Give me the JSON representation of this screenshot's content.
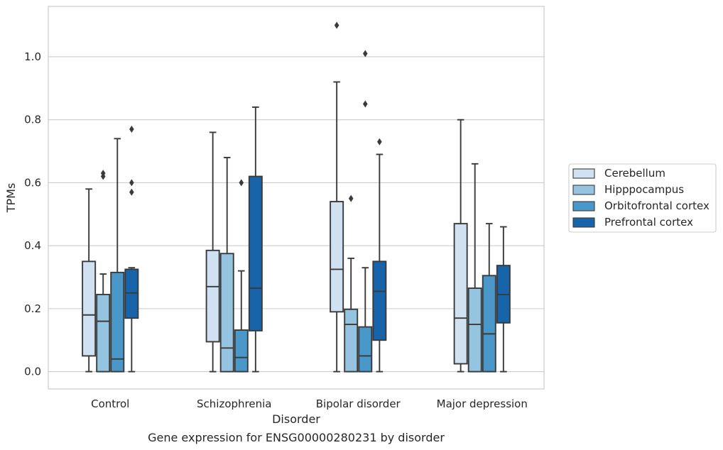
{
  "chart_data": {
    "type": "boxplot",
    "caption": "Gene expression for ENSG00000280231 by disorder",
    "xlabel": "Disorder",
    "ylabel": "TPMs",
    "ylim": [
      -0.055,
      1.16
    ],
    "yticks": [
      0.0,
      0.2,
      0.4,
      0.6,
      0.8,
      1.0
    ],
    "ytick_labels": [
      "0.0",
      "0.2",
      "0.4",
      "0.6",
      "0.8",
      "1.0"
    ],
    "grid": "horizontal",
    "legend_position": "right",
    "categories": [
      "Control",
      "Schizophrenia",
      "Bipolar disorder",
      "Major depression"
    ],
    "series": [
      {
        "name": "Cerebellum",
        "color": "#d0e1f2",
        "boxes": [
          {
            "whislo": 0.0,
            "q1": 0.05,
            "med": 0.18,
            "q3": 0.35,
            "whishi": 0.58,
            "fliers": []
          },
          {
            "whislo": 0.0,
            "q1": 0.095,
            "med": 0.27,
            "q3": 0.385,
            "whishi": 0.76,
            "fliers": []
          },
          {
            "whislo": 0.0,
            "q1": 0.19,
            "med": 0.325,
            "q3": 0.54,
            "whishi": 0.92,
            "fliers": [
              1.1
            ]
          },
          {
            "whislo": 0.0,
            "q1": 0.025,
            "med": 0.17,
            "q3": 0.47,
            "whishi": 0.8,
            "fliers": []
          }
        ]
      },
      {
        "name": "Hipppocampus",
        "color": "#94c4df",
        "boxes": [
          {
            "whislo": 0.0,
            "q1": 0.0,
            "med": 0.16,
            "q3": 0.245,
            "whishi": 0.31,
            "fliers": [
              0.62,
              0.63
            ]
          },
          {
            "whislo": 0.0,
            "q1": 0.0,
            "med": 0.075,
            "q3": 0.375,
            "whishi": 0.68,
            "fliers": []
          },
          {
            "whislo": 0.0,
            "q1": 0.0,
            "med": 0.15,
            "q3": 0.198,
            "whishi": 0.36,
            "fliers": [
              0.55
            ]
          },
          {
            "whislo": 0.0,
            "q1": 0.0,
            "med": 0.15,
            "q3": 0.265,
            "whishi": 0.66,
            "fliers": []
          }
        ]
      },
      {
        "name": "Orbitofrontal cortex",
        "color": "#4a98c9",
        "boxes": [
          {
            "whislo": 0.0,
            "q1": 0.0,
            "med": 0.04,
            "q3": 0.315,
            "whishi": 0.74,
            "fliers": []
          },
          {
            "whislo": 0.0,
            "q1": 0.0,
            "med": 0.045,
            "q3": 0.132,
            "whishi": 0.32,
            "fliers": [
              0.6
            ]
          },
          {
            "whislo": 0.0,
            "q1": 0.0,
            "med": 0.05,
            "q3": 0.142,
            "whishi": 0.33,
            "fliers": [
              0.85,
              1.01
            ]
          },
          {
            "whislo": 0.0,
            "q1": 0.0,
            "med": 0.12,
            "q3": 0.305,
            "whishi": 0.47,
            "fliers": []
          }
        ]
      },
      {
        "name": "Prefrontal cortex",
        "color": "#1764ab",
        "boxes": [
          {
            "whislo": 0.0,
            "q1": 0.17,
            "med": 0.25,
            "q3": 0.325,
            "whishi": 0.33,
            "fliers": [
              0.57,
              0.6,
              0.77
            ]
          },
          {
            "whislo": 0.0,
            "q1": 0.13,
            "med": 0.265,
            "q3": 0.62,
            "whishi": 0.84,
            "fliers": []
          },
          {
            "whislo": 0.0,
            "q1": 0.1,
            "med": 0.255,
            "q3": 0.35,
            "whishi": 0.69,
            "fliers": [
              0.73
            ]
          },
          {
            "whislo": 0.0,
            "q1": 0.155,
            "med": 0.245,
            "q3": 0.337,
            "whishi": 0.46,
            "fliers": []
          }
        ]
      }
    ]
  }
}
